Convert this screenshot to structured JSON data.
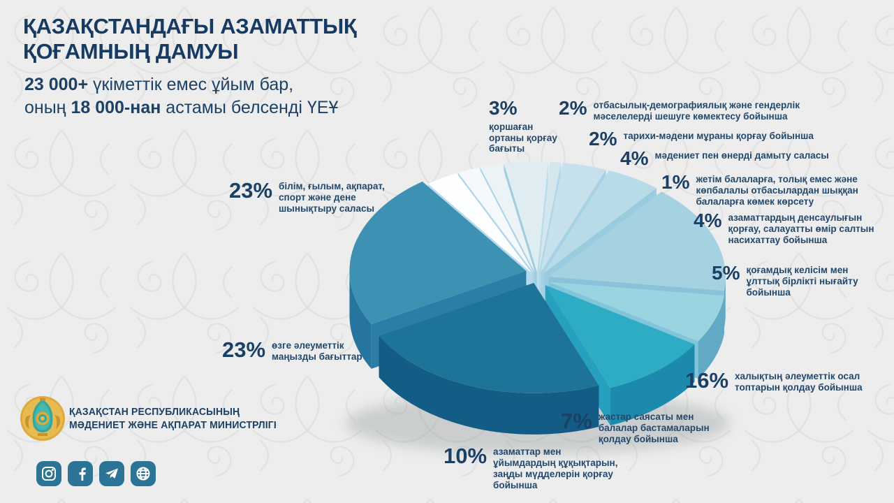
{
  "header": {
    "title": "ҚАЗАҚСТАНДАҒЫ АЗАМАТТЫҚ\nҚОҒАМНЫҢ ДАМУЫ",
    "subtitle": {
      "bold1": "23 000+",
      "rest1": " үкіметтік емес ұйым бар,",
      "pre2": "оның ",
      "bold2": "18 000-нан",
      "rest2": " астамы белсенді ҮЕҰ"
    }
  },
  "chart_data": {
    "type": "pie",
    "unit": "%",
    "slices": [
      {
        "value": 3,
        "pct": "3%",
        "label": "қоршаған\nортаны қорғау\nбағыты",
        "color": "#fdfeff"
      },
      {
        "value": 2,
        "pct": "2%",
        "label": "отбасылық-демографиялық және гендерлік\nмәселелерді шешуге көмектесу бойынша",
        "color": "#f5f9fb"
      },
      {
        "value": 2,
        "pct": "2%",
        "label": "тарихи-мәдени мұраны қорғау бойынша",
        "color": "#ebf3f7"
      },
      {
        "value": 4,
        "pct": "4%",
        "label": "мәдениет пен өнерді дамыту саласы",
        "color": "#dfedf3"
      },
      {
        "value": 1,
        "pct": "1%",
        "label": "жетім балаларға, толық емес және\nкөпбалалы отбасылардан шыққан\nбалаларға көмек көрсету",
        "color": "#d4e7ef"
      },
      {
        "value": 4,
        "pct": "4%",
        "label": "азаматтардың денсаулығын\nқорғау, салауатты өмір салтын\nнасихаттау бойынша",
        "color": "#c7e1ec"
      },
      {
        "value": 5,
        "pct": "5%",
        "label": "қоғамдық келісім мен\nұлттық бірлікті нығайту\nбойынша",
        "color": "#b7dbe7"
      },
      {
        "value": 16,
        "pct": "16%",
        "label": "халықтың әлеуметтік осал\nтоптарын қолдау бойынша",
        "color": "#a4d2e0"
      },
      {
        "value": 7,
        "pct": "7%",
        "label": "жастар саясаты мен\nбалалар бастамаларын\nқолдау бойынша",
        "color": "#9bd4e1"
      },
      {
        "value": 10,
        "pct": "10%",
        "label": "азаматтар мен\nұйымдардың құқықтарын,\nзаңды мүдделерін қорғау\nбойынша",
        "color": "#2dacc4"
      },
      {
        "value": 23,
        "pct": "23%",
        "label": "өзге әлеуметтік\nмаңызды бағыттар",
        "color": "#1e7398",
        "lift": 5
      },
      {
        "value": 23,
        "pct": "23%",
        "label": "білім, ғылым, ақпарат,\nспорт және дене\nшынықтыру саласы",
        "color": "#3d92b4",
        "lift": 10
      }
    ],
    "layout": {
      "start_angle": -36,
      "explode": 17,
      "depth": 54,
      "legend_position": "around"
    }
  },
  "footer": {
    "ministry": "ҚАЗАҚСТАН РЕСПУБЛИКАСЫНЫҢ\nМӘДЕНИЕТ ЖӘНЕ АҚПАРАТ МИНИСТРЛІГІ",
    "social": [
      "instagram",
      "facebook",
      "telegram",
      "website"
    ]
  },
  "colors": {
    "navy": "#1b4066",
    "icon_background": "#2c7496",
    "page_background": "#ecedec",
    "emblem_gold": "#dfaa3b",
    "emblem_teal": "#35a79e"
  }
}
